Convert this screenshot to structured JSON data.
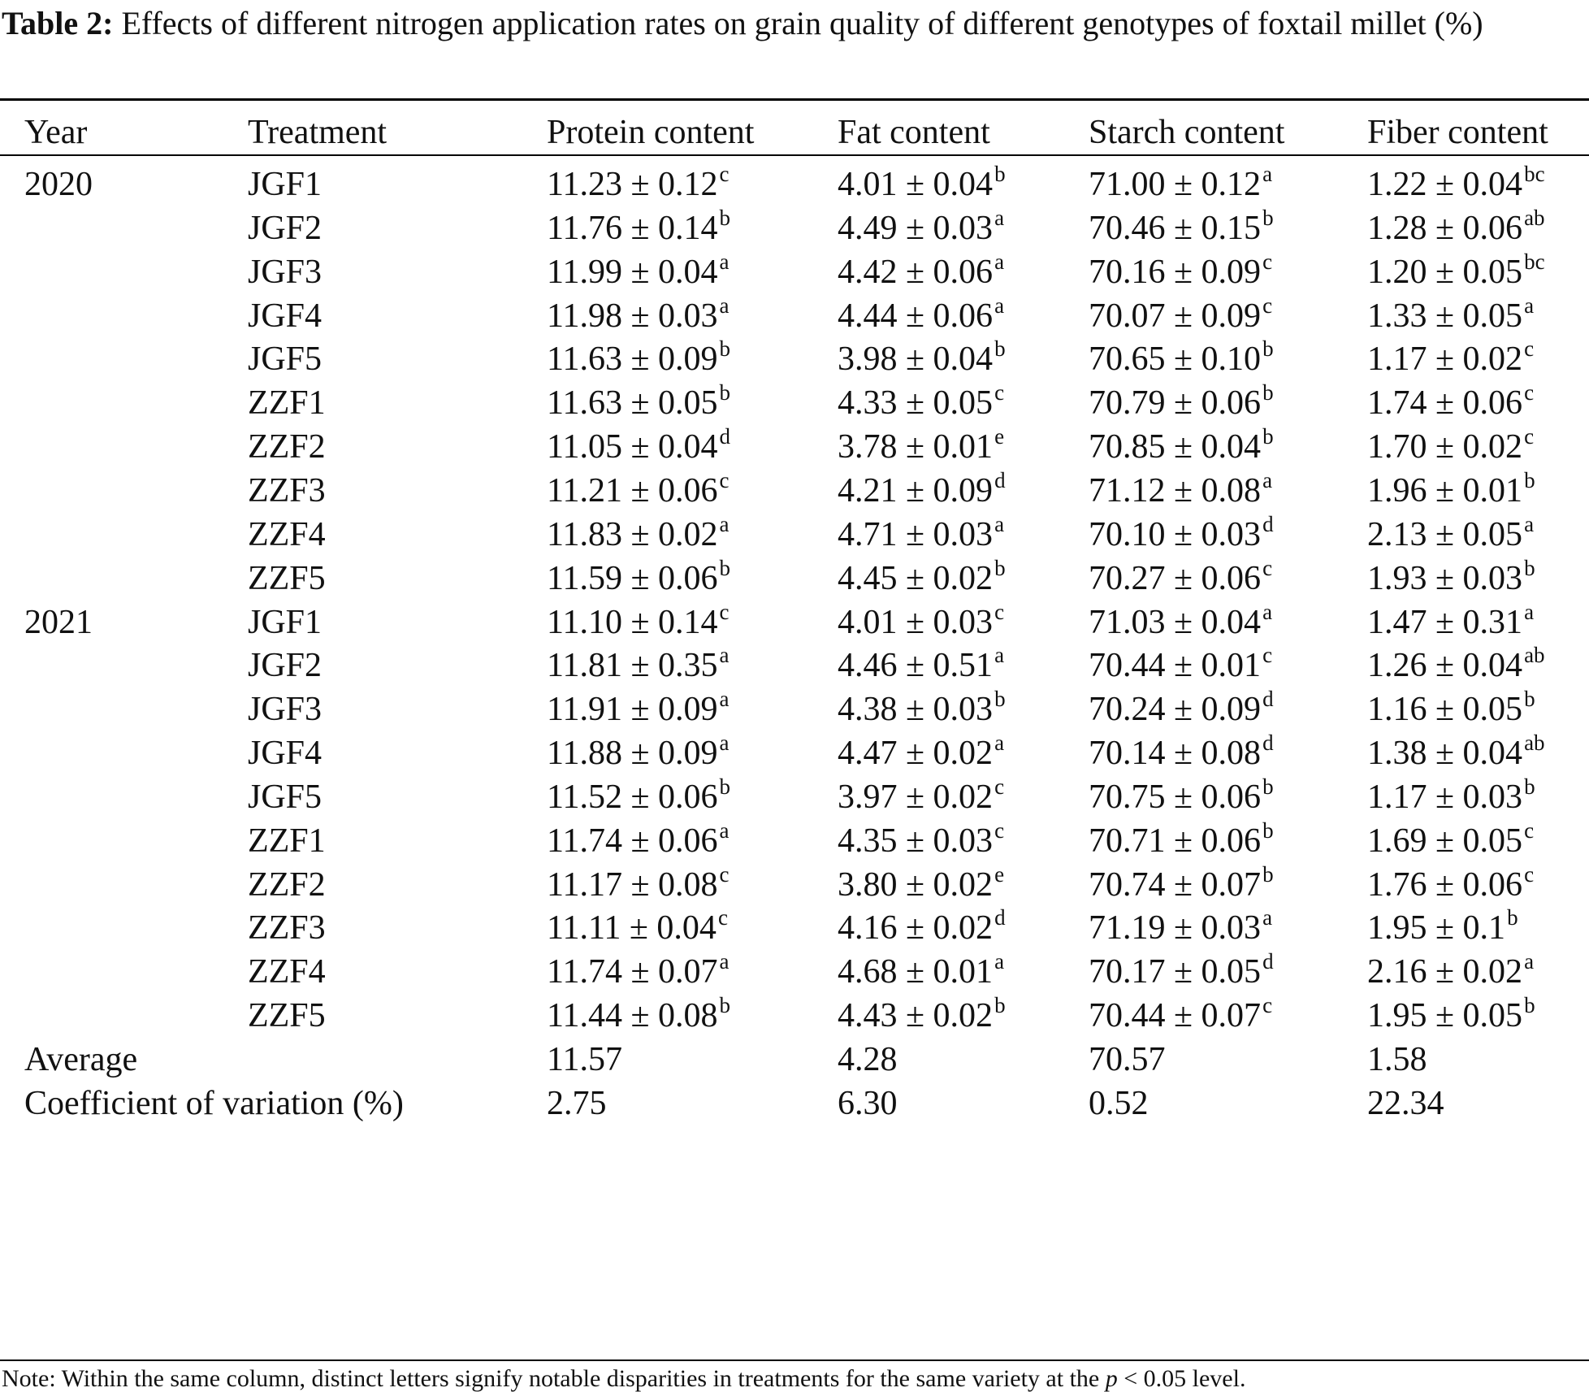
{
  "caption": {
    "label": "Table 2:",
    "text": "Effects of different nitrogen application rates on grain quality of different genotypes of foxtail millet (%)"
  },
  "headers": {
    "year": "Year",
    "treatment": "Treatment",
    "protein": "Protein content",
    "fat": "Fat content",
    "starch": "Starch content",
    "fiber": "Fiber content"
  },
  "rows": [
    {
      "year": "2020",
      "treatment": "JGF1",
      "protein": {
        "v": "11.23 ± 0.12",
        "s": "c"
      },
      "fat": {
        "v": "4.01 ± 0.04",
        "s": "b"
      },
      "starch": {
        "v": "71.00 ± 0.12",
        "s": "a"
      },
      "fiber": {
        "v": "1.22 ± 0.04",
        "s": "bc"
      }
    },
    {
      "year": "",
      "treatment": "JGF2",
      "protein": {
        "v": "11.76 ± 0.14",
        "s": "b"
      },
      "fat": {
        "v": "4.49 ± 0.03",
        "s": "a"
      },
      "starch": {
        "v": "70.46 ± 0.15",
        "s": "b"
      },
      "fiber": {
        "v": "1.28 ± 0.06",
        "s": "ab"
      }
    },
    {
      "year": "",
      "treatment": "JGF3",
      "protein": {
        "v": "11.99 ± 0.04",
        "s": "a"
      },
      "fat": {
        "v": "4.42 ± 0.06",
        "s": "a"
      },
      "starch": {
        "v": "70.16 ± 0.09",
        "s": "c"
      },
      "fiber": {
        "v": "1.20 ± 0.05",
        "s": "bc"
      }
    },
    {
      "year": "",
      "treatment": "JGF4",
      "protein": {
        "v": "11.98 ± 0.03",
        "s": "a"
      },
      "fat": {
        "v": "4.44 ± 0.06",
        "s": "a"
      },
      "starch": {
        "v": "70.07 ± 0.09",
        "s": "c"
      },
      "fiber": {
        "v": "1.33 ± 0.05",
        "s": "a"
      }
    },
    {
      "year": "",
      "treatment": "JGF5",
      "protein": {
        "v": "11.63 ± 0.09",
        "s": "b"
      },
      "fat": {
        "v": "3.98 ± 0.04",
        "s": "b"
      },
      "starch": {
        "v": "70.65 ± 0.10",
        "s": "b"
      },
      "fiber": {
        "v": "1.17 ± 0.02",
        "s": "c"
      }
    },
    {
      "year": "",
      "treatment": "ZZF1",
      "protein": {
        "v": "11.63 ± 0.05",
        "s": "b"
      },
      "fat": {
        "v": "4.33 ± 0.05",
        "s": "c"
      },
      "starch": {
        "v": "70.79 ± 0.06",
        "s": "b"
      },
      "fiber": {
        "v": "1.74 ± 0.06",
        "s": "c"
      }
    },
    {
      "year": "",
      "treatment": "ZZF2",
      "protein": {
        "v": "11.05 ± 0.04",
        "s": "d"
      },
      "fat": {
        "v": "3.78 ± 0.01",
        "s": "e"
      },
      "starch": {
        "v": "70.85 ± 0.04",
        "s": "b"
      },
      "fiber": {
        "v": "1.70 ± 0.02",
        "s": "c"
      }
    },
    {
      "year": "",
      "treatment": "ZZF3",
      "protein": {
        "v": "11.21 ± 0.06",
        "s": "c"
      },
      "fat": {
        "v": "4.21 ± 0.09",
        "s": "d"
      },
      "starch": {
        "v": "71.12 ± 0.08",
        "s": "a"
      },
      "fiber": {
        "v": "1.96 ± 0.01",
        "s": "b"
      }
    },
    {
      "year": "",
      "treatment": "ZZF4",
      "protein": {
        "v": "11.83 ± 0.02",
        "s": "a"
      },
      "fat": {
        "v": "4.71 ± 0.03",
        "s": "a"
      },
      "starch": {
        "v": "70.10 ± 0.03",
        "s": "d"
      },
      "fiber": {
        "v": "2.13 ± 0.05",
        "s": "a"
      }
    },
    {
      "year": "",
      "treatment": "ZZF5",
      "protein": {
        "v": "11.59 ± 0.06",
        "s": "b"
      },
      "fat": {
        "v": "4.45 ± 0.02",
        "s": "b"
      },
      "starch": {
        "v": "70.27 ± 0.06",
        "s": "c"
      },
      "fiber": {
        "v": "1.93 ± 0.03",
        "s": "b"
      }
    },
    {
      "year": "2021",
      "treatment": "JGF1",
      "protein": {
        "v": "11.10 ± 0.14",
        "s": "c"
      },
      "fat": {
        "v": "4.01 ± 0.03",
        "s": "c"
      },
      "starch": {
        "v": "71.03 ± 0.04",
        "s": "a"
      },
      "fiber": {
        "v": "1.47 ± 0.31",
        "s": "a"
      }
    },
    {
      "year": "",
      "treatment": "JGF2",
      "protein": {
        "v": "11.81 ± 0.35",
        "s": "a"
      },
      "fat": {
        "v": "4.46 ± 0.51",
        "s": "a"
      },
      "starch": {
        "v": "70.44 ± 0.01",
        "s": "c"
      },
      "fiber": {
        "v": "1.26 ± 0.04",
        "s": "ab"
      }
    },
    {
      "year": "",
      "treatment": "JGF3",
      "protein": {
        "v": "11.91 ± 0.09",
        "s": "a"
      },
      "fat": {
        "v": "4.38 ± 0.03",
        "s": "b"
      },
      "starch": {
        "v": "70.24 ± 0.09",
        "s": "d"
      },
      "fiber": {
        "v": "1.16 ± 0.05",
        "s": "b"
      }
    },
    {
      "year": "",
      "treatment": "JGF4",
      "protein": {
        "v": "11.88 ± 0.09",
        "s": "a"
      },
      "fat": {
        "v": "4.47 ± 0.02",
        "s": "a"
      },
      "starch": {
        "v": "70.14 ± 0.08",
        "s": "d"
      },
      "fiber": {
        "v": "1.38 ± 0.04",
        "s": "ab"
      }
    },
    {
      "year": "",
      "treatment": "JGF5",
      "protein": {
        "v": "11.52 ± 0.06",
        "s": "b"
      },
      "fat": {
        "v": "3.97 ± 0.02",
        "s": "c"
      },
      "starch": {
        "v": "70.75 ± 0.06",
        "s": "b"
      },
      "fiber": {
        "v": "1.17 ± 0.03",
        "s": "b"
      }
    },
    {
      "year": "",
      "treatment": "ZZF1",
      "protein": {
        "v": "11.74 ± 0.06",
        "s": "a"
      },
      "fat": {
        "v": "4.35 ± 0.03",
        "s": "c"
      },
      "starch": {
        "v": "70.71 ± 0.06",
        "s": "b"
      },
      "fiber": {
        "v": "1.69 ± 0.05",
        "s": "c"
      }
    },
    {
      "year": "",
      "treatment": "ZZF2",
      "protein": {
        "v": "11.17 ± 0.08",
        "s": "c"
      },
      "fat": {
        "v": "3.80 ± 0.02",
        "s": "e"
      },
      "starch": {
        "v": "70.74 ± 0.07",
        "s": "b"
      },
      "fiber": {
        "v": "1.76 ± 0.06",
        "s": "c"
      }
    },
    {
      "year": "",
      "treatment": "ZZF3",
      "protein": {
        "v": "11.11 ± 0.04",
        "s": "c"
      },
      "fat": {
        "v": "4.16 ± 0.02",
        "s": "d"
      },
      "starch": {
        "v": "71.19 ± 0.03",
        "s": "a"
      },
      "fiber": {
        "v": "1.95 ± 0.1",
        "s": "b"
      }
    },
    {
      "year": "",
      "treatment": "ZZF4",
      "protein": {
        "v": "11.74 ± 0.07",
        "s": "a"
      },
      "fat": {
        "v": "4.68 ± 0.01",
        "s": "a"
      },
      "starch": {
        "v": "70.17 ± 0.05",
        "s": "d"
      },
      "fiber": {
        "v": "2.16 ± 0.02",
        "s": "a"
      }
    },
    {
      "year": "",
      "treatment": "ZZF5",
      "protein": {
        "v": "11.44 ± 0.08",
        "s": "b"
      },
      "fat": {
        "v": "4.43 ± 0.02",
        "s": "b"
      },
      "starch": {
        "v": "70.44 ± 0.07",
        "s": "c"
      },
      "fiber": {
        "v": "1.95 ± 0.05",
        "s": "b"
      }
    },
    {
      "year": "Average",
      "treatment": "",
      "protein": {
        "v": "11.57",
        "s": ""
      },
      "fat": {
        "v": "4.28",
        "s": ""
      },
      "starch": {
        "v": "70.57",
        "s": ""
      },
      "fiber": {
        "v": "1.58",
        "s": ""
      }
    },
    {
      "year": "Coefficient of variation (%)",
      "treatment": "",
      "protein": {
        "v": "2.75",
        "s": ""
      },
      "fat": {
        "v": "6.30",
        "s": ""
      },
      "starch": {
        "v": "0.52",
        "s": ""
      },
      "fiber": {
        "v": "22.34",
        "s": ""
      }
    }
  ],
  "note": {
    "before": "Note: Within the same column, distinct  letters signify notable disparities in treatments for the same variety at the ",
    "italic": "p",
    "after": " < 0.05 level."
  }
}
